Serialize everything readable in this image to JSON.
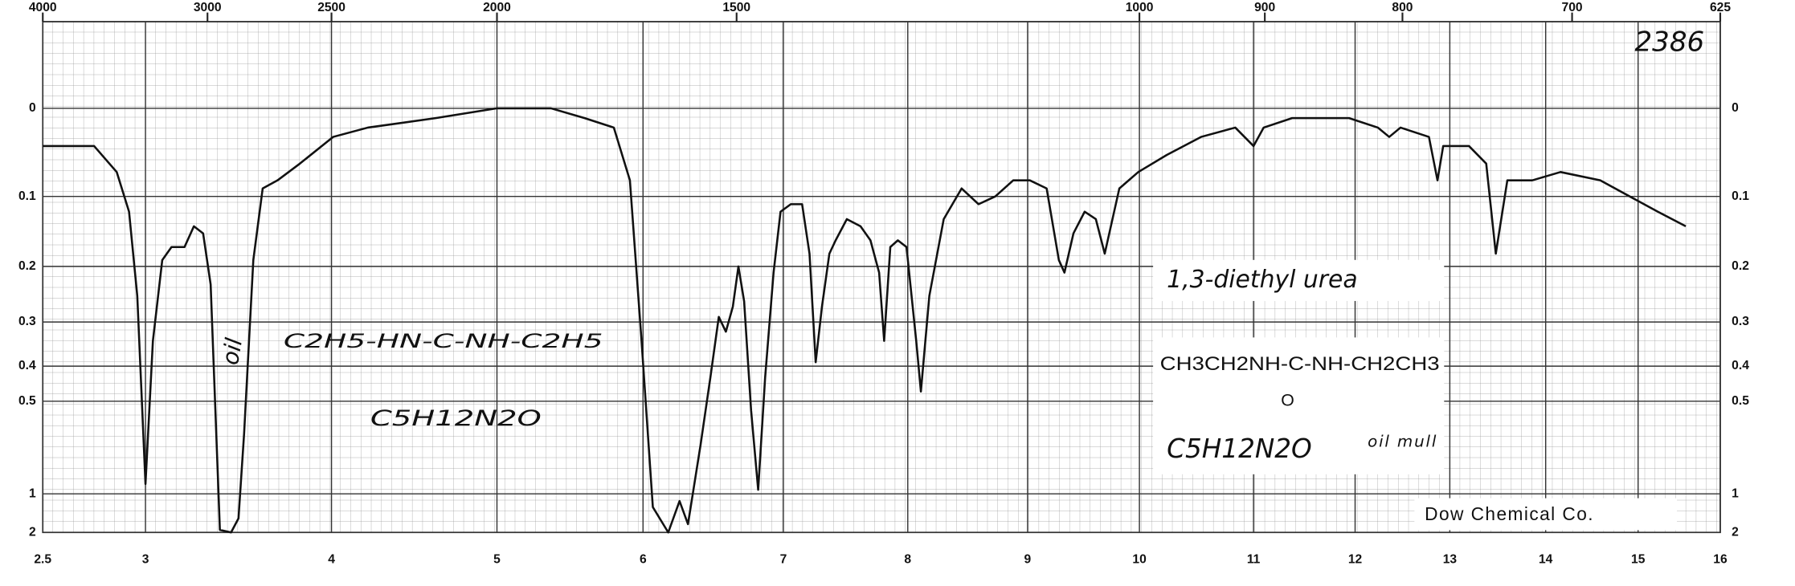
{
  "chart_data": {
    "type": "line",
    "title": "1,3-diethyl urea",
    "annotations": {
      "number": "2386",
      "formula_structural": "CH3CH2NH-C-NH-CH2CH3",
      "carbonyl_oxygen": "O",
      "formula": "C5H12N2O",
      "sample": "oil mull",
      "source": "Dow Chemical Co.",
      "hand_oil": "oil",
      "hand_structure": "C2H5-HN-C-NH-C2H5",
      "hand_formula": "C5H12N2O"
    },
    "x": [
      2.5,
      2.64,
      2.75,
      2.86,
      2.92,
      2.96,
      3.0,
      3.04,
      3.09,
      3.14,
      3.21,
      3.26,
      3.31,
      3.35,
      3.4,
      3.46,
      3.5,
      3.53,
      3.58,
      3.63,
      3.71,
      3.83,
      4.01,
      4.22,
      4.63,
      5.0,
      5.37,
      5.6,
      5.8,
      5.91,
      5.99,
      6.07,
      6.18,
      6.26,
      6.32,
      6.41,
      6.48,
      6.54,
      6.59,
      6.64,
      6.68,
      6.72,
      6.77,
      6.82,
      6.87,
      6.93,
      6.98,
      7.06,
      7.15,
      7.21,
      7.26,
      7.31,
      7.37,
      7.42,
      7.51,
      7.62,
      7.7,
      7.77,
      7.81,
      7.86,
      7.92,
      7.99,
      8.07,
      8.11,
      8.18,
      8.3,
      8.45,
      8.59,
      8.73,
      8.88,
      9.02,
      9.17,
      9.28,
      9.33,
      9.41,
      9.51,
      9.61,
      9.69,
      9.82,
      9.99,
      10.24,
      10.54,
      10.84,
      11.0,
      11.1,
      11.38,
      11.94,
      12.24,
      12.36,
      12.48,
      12.78,
      12.87,
      12.93,
      13.2,
      13.38,
      13.48,
      13.6,
      13.86,
      14.16,
      14.59,
      15.24,
      15.58
    ],
    "series": [
      {
        "name": "1,3-diethyl urea",
        "color": "#111111",
        "values": [
          0.04,
          0.04,
          0.04,
          0.07,
          0.12,
          0.25,
          0.91,
          0.34,
          0.19,
          0.17,
          0.17,
          0.14,
          0.15,
          0.23,
          1.8,
          2.0,
          1.37,
          0.62,
          0.19,
          0.09,
          0.08,
          0.06,
          0.03,
          0.02,
          0.01,
          0.0,
          0.0,
          0.01,
          0.02,
          0.08,
          0.34,
          1.16,
          2.0,
          1.08,
          1.53,
          0.67,
          0.43,
          0.29,
          0.32,
          0.27,
          0.2,
          0.26,
          0.53,
          0.96,
          0.43,
          0.21,
          0.12,
          0.11,
          0.11,
          0.18,
          0.39,
          0.27,
          0.18,
          0.16,
          0.13,
          0.14,
          0.16,
          0.21,
          0.34,
          0.17,
          0.16,
          0.17,
          0.34,
          0.47,
          0.25,
          0.13,
          0.09,
          0.11,
          0.1,
          0.08,
          0.08,
          0.09,
          0.19,
          0.21,
          0.15,
          0.12,
          0.13,
          0.18,
          0.09,
          0.07,
          0.05,
          0.03,
          0.02,
          0.04,
          0.02,
          0.01,
          0.01,
          0.02,
          0.03,
          0.02,
          0.03,
          0.08,
          0.04,
          0.04,
          0.06,
          0.18,
          0.08,
          0.08,
          0.07,
          0.08,
          0.12,
          0.14
        ]
      }
    ],
    "xlim": [
      2.5,
      16
    ],
    "xticks": [
      2.5,
      3,
      4,
      5,
      6,
      7,
      8,
      9,
      10,
      11,
      12,
      13,
      14,
      15,
      16
    ],
    "x2ticks": [
      4000,
      3000,
      2500,
      2000,
      1500,
      1000,
      900,
      800,
      700,
      625
    ],
    "ylim": [
      -0.08,
      2.0
    ],
    "yticks": [
      0.0,
      0.1,
      0.2,
      0.3,
      0.4,
      0.5,
      1.0,
      2.0
    ],
    "yscale": "transmittance",
    "grid": true
  }
}
